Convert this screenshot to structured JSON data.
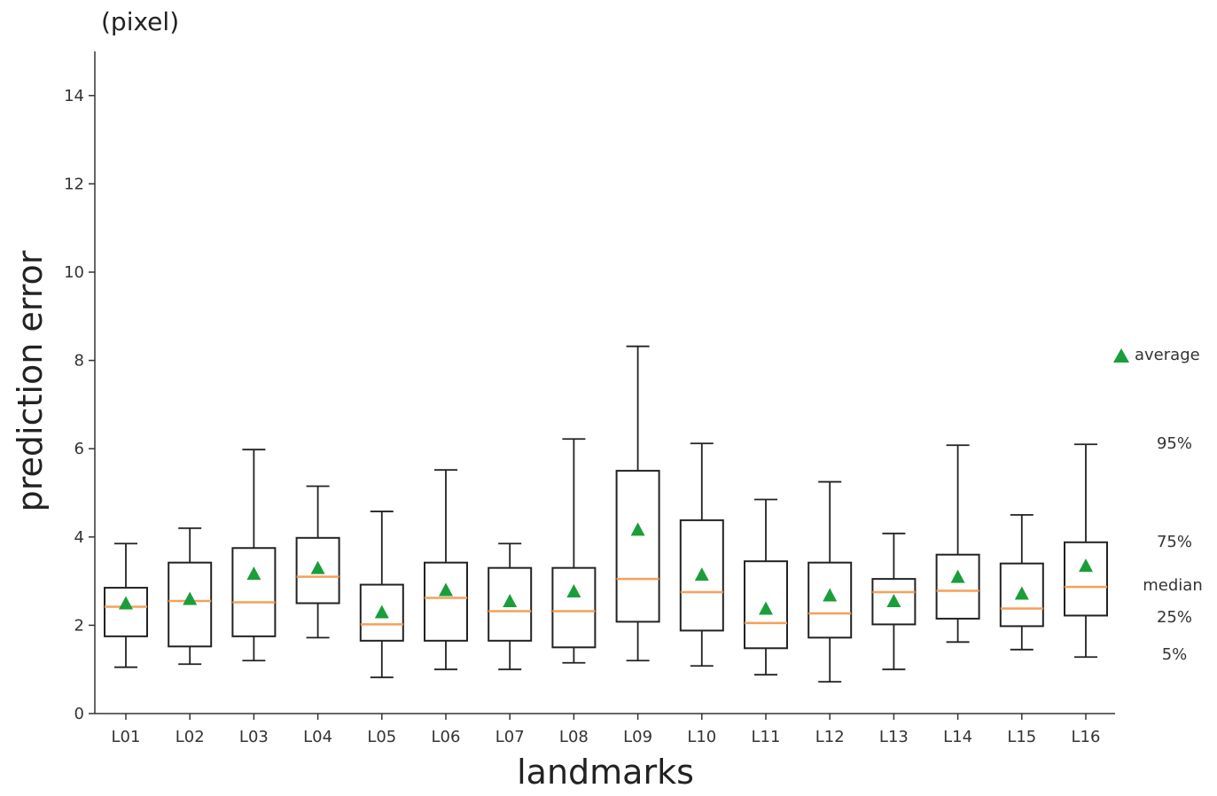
{
  "chart_data": {
    "type": "box",
    "unit": "(pixel)",
    "ylabel": "prediction error",
    "xlabel": "landmarks",
    "ylim": [
      0,
      15
    ],
    "yticks": [
      0,
      2,
      4,
      6,
      8,
      10,
      12,
      14
    ],
    "grid": false,
    "categories": [
      "L01",
      "L02",
      "L03",
      "L04",
      "L05",
      "L06",
      "L07",
      "L08",
      "L09",
      "L10",
      "L11",
      "L12",
      "L13",
      "L14",
      "L15",
      "L16"
    ],
    "boxes": [
      {
        "p5": 1.05,
        "q1": 1.75,
        "median": 2.42,
        "q3": 2.85,
        "p95": 3.85,
        "mean": 2.5
      },
      {
        "p5": 1.12,
        "q1": 1.52,
        "median": 2.55,
        "q3": 3.42,
        "p95": 4.2,
        "mean": 2.6
      },
      {
        "p5": 1.2,
        "q1": 1.75,
        "median": 2.52,
        "q3": 3.75,
        "p95": 5.98,
        "mean": 3.17
      },
      {
        "p5": 1.72,
        "q1": 2.5,
        "median": 3.1,
        "q3": 3.98,
        "p95": 5.15,
        "mean": 3.3
      },
      {
        "p5": 0.82,
        "q1": 1.65,
        "median": 2.02,
        "q3": 2.92,
        "p95": 4.58,
        "mean": 2.3
      },
      {
        "p5": 1.0,
        "q1": 1.65,
        "median": 2.62,
        "q3": 3.42,
        "p95": 5.52,
        "mean": 2.8
      },
      {
        "p5": 1.0,
        "q1": 1.65,
        "median": 2.32,
        "q3": 3.3,
        "p95": 3.85,
        "mean": 2.55
      },
      {
        "p5": 1.15,
        "q1": 1.5,
        "median": 2.32,
        "q3": 3.3,
        "p95": 6.22,
        "mean": 2.77
      },
      {
        "p5": 1.2,
        "q1": 2.08,
        "median": 3.05,
        "q3": 5.5,
        "p95": 8.32,
        "mean": 4.17
      },
      {
        "p5": 1.08,
        "q1": 1.88,
        "median": 2.75,
        "q3": 4.38,
        "p95": 6.12,
        "mean": 3.15
      },
      {
        "p5": 0.88,
        "q1": 1.48,
        "median": 2.05,
        "q3": 3.45,
        "p95": 4.85,
        "mean": 2.38
      },
      {
        "p5": 0.72,
        "q1": 1.72,
        "median": 2.27,
        "q3": 3.42,
        "p95": 5.25,
        "mean": 2.68
      },
      {
        "p5": 1.0,
        "q1": 2.02,
        "median": 2.75,
        "q3": 3.05,
        "p95": 4.08,
        "mean": 2.55
      },
      {
        "p5": 1.62,
        "q1": 2.15,
        "median": 2.78,
        "q3": 3.6,
        "p95": 6.08,
        "mean": 3.1
      },
      {
        "p5": 1.45,
        "q1": 1.98,
        "median": 2.38,
        "q3": 3.4,
        "p95": 4.5,
        "mean": 2.72
      },
      {
        "p5": 1.28,
        "q1": 2.22,
        "median": 2.87,
        "q3": 3.88,
        "p95": 6.1,
        "mean": 3.35
      }
    ],
    "legend": {
      "average": "average",
      "p95": "95%",
      "q3": "75%",
      "median": "median",
      "q1": "25%",
      "p5": "5%"
    },
    "colors": {
      "box": "#222222",
      "median": "#f5a05a",
      "mean": "#1a9e3a",
      "axis": "#333333"
    }
  }
}
